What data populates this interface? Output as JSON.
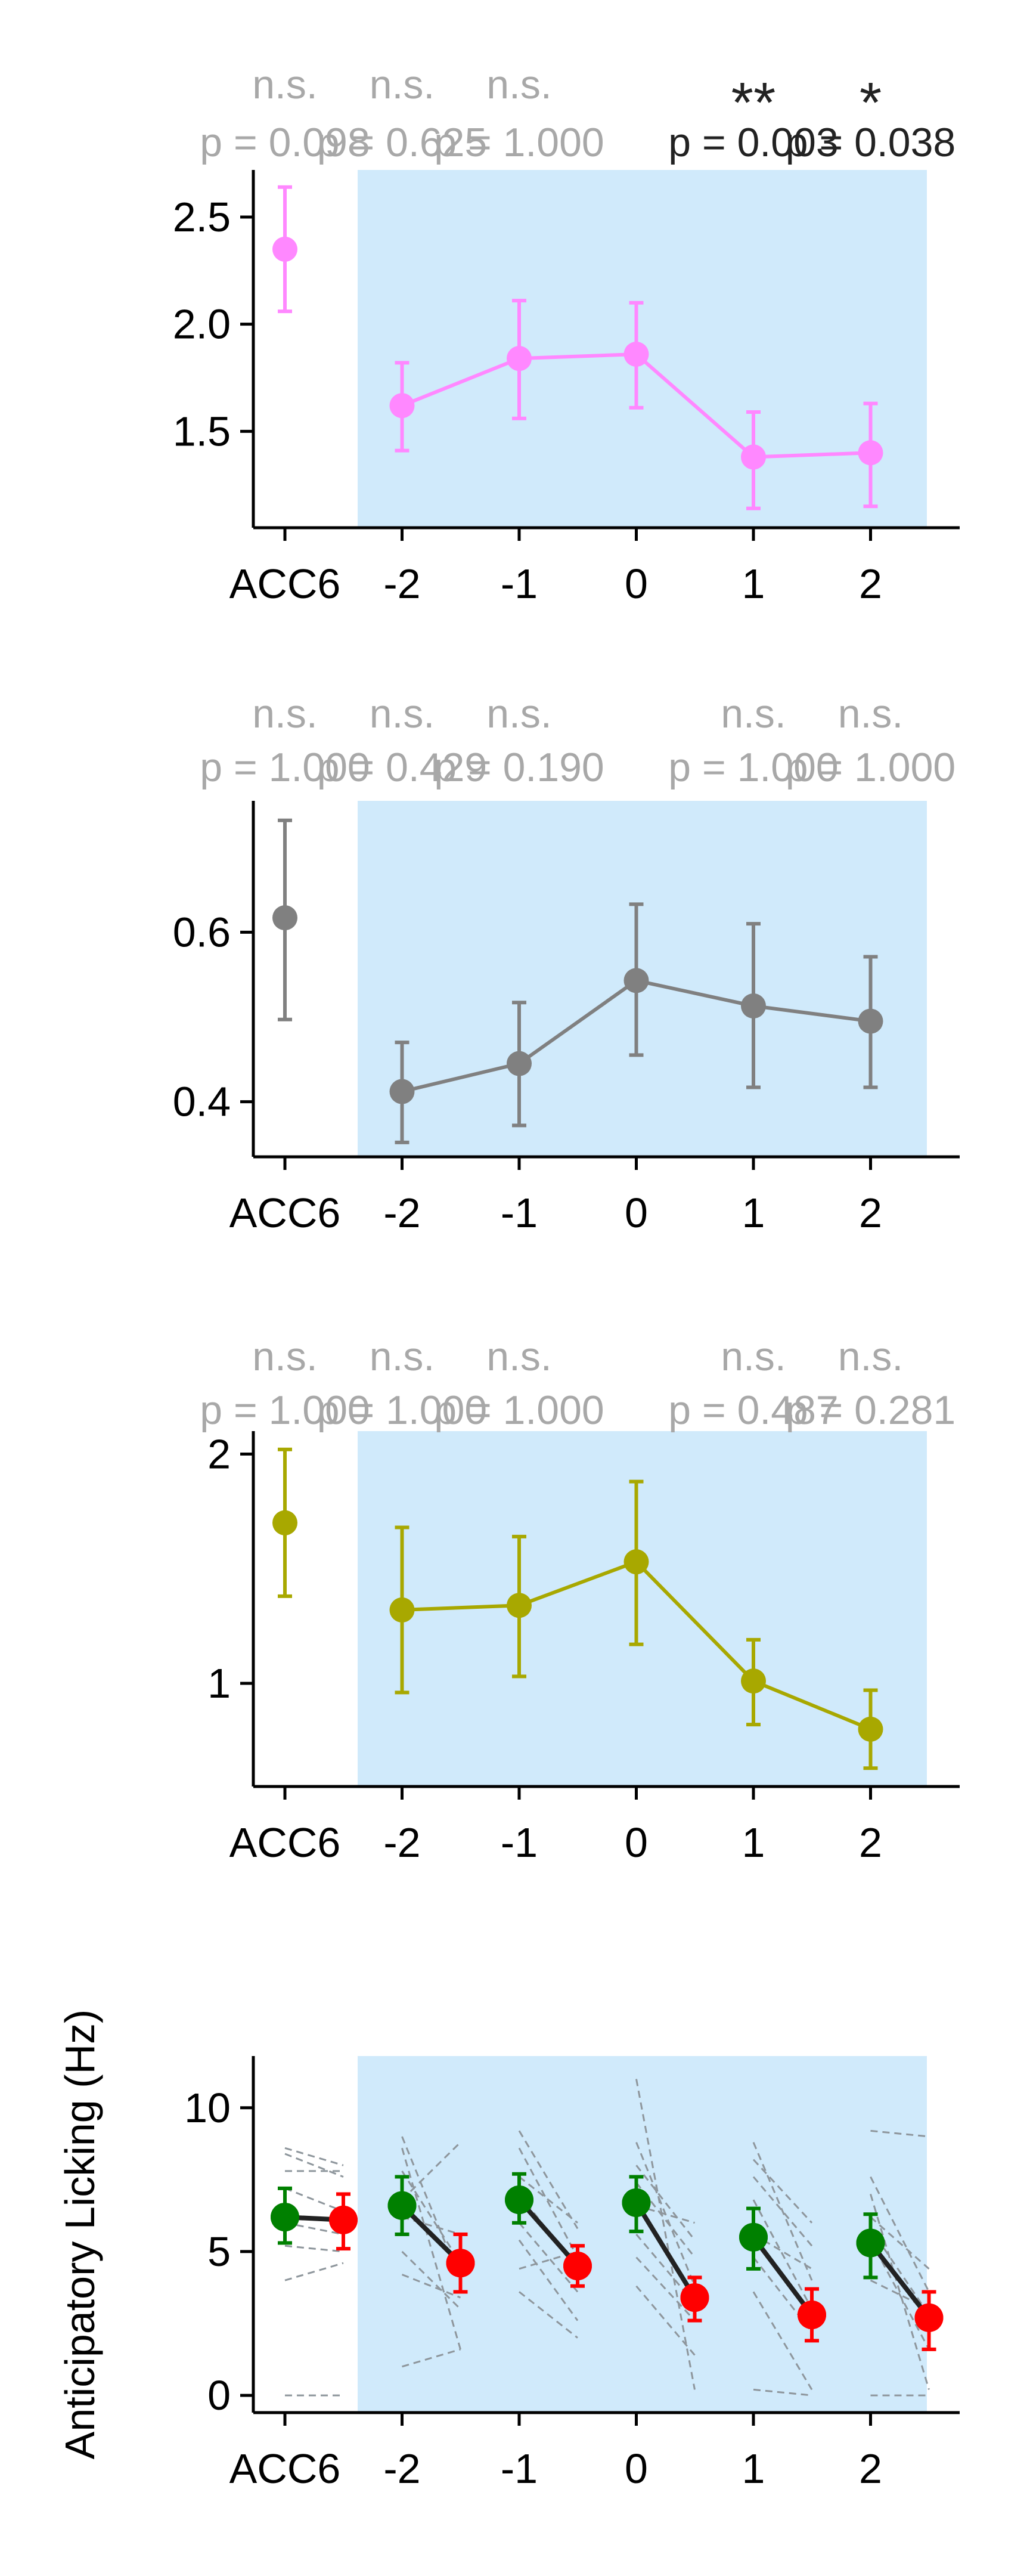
{
  "chart_data": [
    {
      "type": "line",
      "ylabel": "",
      "categories": [
        "ACC6",
        "-2",
        "-1",
        "0",
        "1",
        "2"
      ],
      "yticks": [
        1.5,
        2.0,
        2.5
      ],
      "ytick_labels": [
        "1.5",
        "2.0",
        "2.5"
      ],
      "ylim": [
        1.05,
        2.72
      ],
      "shaded_region": {
        "from": "-2",
        "to": "2",
        "color": "#d0eafb"
      },
      "series": [
        {
          "color": "#ff88ff",
          "points": [
            {
              "x": "ACC6",
              "y": 2.35,
              "err_low": 2.06,
              "err_high": 2.64
            },
            {
              "x": "-2",
              "y": 1.62,
              "err_low": 1.41,
              "err_high": 1.82
            },
            {
              "x": "-1",
              "y": 1.84,
              "err_low": 1.56,
              "err_high": 2.11
            },
            {
              "x": "0",
              "y": 1.86,
              "err_low": 1.61,
              "err_high": 2.1
            },
            {
              "x": "1",
              "y": 1.38,
              "err_low": 1.14,
              "err_high": 1.59
            },
            {
              "x": "2",
              "y": 1.4,
              "err_low": 1.15,
              "err_high": 1.63
            }
          ]
        }
      ],
      "annotations": [
        {
          "x": "ACC6",
          "mark": "n.s.",
          "p": "p = 0.098",
          "significant": false
        },
        {
          "x": "-2",
          "mark": "n.s.",
          "p": "p = 0.625",
          "significant": false
        },
        {
          "x": "-1",
          "mark": "n.s.",
          "p": "p = 1.000",
          "significant": false
        },
        {
          "x": "1",
          "mark": "**",
          "p": "p = 0.003",
          "significant": true
        },
        {
          "x": "2",
          "mark": "*",
          "p": "p = 0.038",
          "significant": true
        }
      ]
    },
    {
      "type": "line",
      "ylabel": "",
      "categories": [
        "ACC6",
        "-2",
        "-1",
        "0",
        "1",
        "2"
      ],
      "yticks": [
        0.4,
        0.6
      ],
      "ytick_labels": [
        "0.4",
        "0.6"
      ],
      "ylim": [
        0.335,
        0.755
      ],
      "shaded_region": {
        "from": "-2",
        "to": "2",
        "color": "#d0eafb"
      },
      "series": [
        {
          "color": "#808080",
          "points": [
            {
              "x": "ACC6",
              "y": 0.617,
              "err_low": 0.497,
              "err_high": 0.732
            },
            {
              "x": "-2",
              "y": 0.412,
              "err_low": 0.352,
              "err_high": 0.47
            },
            {
              "x": "-1",
              "y": 0.445,
              "err_low": 0.372,
              "err_high": 0.517
            },
            {
              "x": "0",
              "y": 0.543,
              "err_low": 0.455,
              "err_high": 0.633
            },
            {
              "x": "1",
              "y": 0.513,
              "err_low": 0.417,
              "err_high": 0.61
            },
            {
              "x": "2",
              "y": 0.495,
              "err_low": 0.417,
              "err_high": 0.571
            }
          ]
        }
      ],
      "annotations": [
        {
          "x": "ACC6",
          "mark": "n.s.",
          "p": "p = 1.000",
          "significant": false
        },
        {
          "x": "-2",
          "mark": "n.s.",
          "p": "p = 0.429",
          "significant": false
        },
        {
          "x": "-1",
          "mark": "n.s.",
          "p": "p = 0.190",
          "significant": false
        },
        {
          "x": "1",
          "mark": "n.s.",
          "p": "p = 1.000",
          "significant": false
        },
        {
          "x": "2",
          "mark": "n.s.",
          "p": "p = 1.000",
          "significant": false
        }
      ]
    },
    {
      "type": "line",
      "ylabel": "",
      "categories": [
        "ACC6",
        "-2",
        "-1",
        "0",
        "1",
        "2"
      ],
      "yticks": [
        1,
        2
      ],
      "ytick_labels": [
        "1",
        "2"
      ],
      "ylim": [
        0.55,
        2.1
      ],
      "shaded_region": {
        "from": "-2",
        "to": "2",
        "color": "#d0eafb"
      },
      "series": [
        {
          "color": "#a8a800",
          "points": [
            {
              "x": "ACC6",
              "y": 1.7,
              "err_low": 1.38,
              "err_high": 2.02
            },
            {
              "x": "-2",
              "y": 1.32,
              "err_low": 0.96,
              "err_high": 1.68
            },
            {
              "x": "-1",
              "y": 1.34,
              "err_low": 1.03,
              "err_high": 1.64
            },
            {
              "x": "0",
              "y": 1.53,
              "err_low": 1.17,
              "err_high": 1.88
            },
            {
              "x": "1",
              "y": 1.01,
              "err_low": 0.82,
              "err_high": 1.19
            },
            {
              "x": "2",
              "y": 0.8,
              "err_low": 0.63,
              "err_high": 0.97
            }
          ]
        }
      ],
      "annotations": [
        {
          "x": "ACC6",
          "mark": "n.s.",
          "p": "p = 1.000",
          "significant": false
        },
        {
          "x": "-2",
          "mark": "n.s.",
          "p": "p = 1.000",
          "significant": false
        },
        {
          "x": "-1",
          "mark": "n.s.",
          "p": "p = 1.000",
          "significant": false
        },
        {
          "x": "1",
          "mark": "n.s.",
          "p": "p = 0.487",
          "significant": false
        },
        {
          "x": "2",
          "mark": "n.s.",
          "p": "p = 0.281",
          "significant": false
        }
      ]
    },
    {
      "type": "line",
      "ylabel": "Anticipatory Licking (Hz)",
      "categories": [
        "ACC6",
        "-2",
        "-1",
        "0",
        "1",
        "2"
      ],
      "yticks": [
        0,
        5,
        10
      ],
      "ytick_labels": [
        "0",
        "5",
        "10"
      ],
      "ylim": [
        -0.6,
        11.8
      ],
      "shaded_region": {
        "from": "-2",
        "to": "2",
        "color": "#d0eafb"
      },
      "series": [
        {
          "color": "#008000",
          "points": [
            {
              "x": "ACC6",
              "y": 6.2,
              "err_low": 5.3,
              "err_high": 7.2
            },
            {
              "x": "-2",
              "y": 6.6,
              "err_low": 5.6,
              "err_high": 7.6
            },
            {
              "x": "-1",
              "y": 6.8,
              "err_low": 6.0,
              "err_high": 7.7
            },
            {
              "x": "0",
              "y": 6.7,
              "err_low": 5.7,
              "err_high": 7.6
            },
            {
              "x": "1",
              "y": 5.5,
              "err_low": 4.4,
              "err_high": 6.5
            },
            {
              "x": "2",
              "y": 5.3,
              "err_low": 4.1,
              "err_high": 6.3
            }
          ]
        },
        {
          "color": "#ff0000",
          "points": [
            {
              "x": "ACC6",
              "y": 6.1,
              "err_low": 5.1,
              "err_high": 7.0
            },
            {
              "x": "-2",
              "y": 4.6,
              "err_low": 3.6,
              "err_high": 5.6
            },
            {
              "x": "-1",
              "y": 4.5,
              "err_low": 3.8,
              "err_high": 5.2
            },
            {
              "x": "0",
              "y": 3.4,
              "err_low": 2.6,
              "err_high": 4.1
            },
            {
              "x": "1",
              "y": 2.8,
              "err_low": 1.9,
              "err_high": 3.7
            },
            {
              "x": "2",
              "y": 2.7,
              "err_low": 1.6,
              "err_high": 3.6
            }
          ]
        }
      ],
      "individual_pairs": [
        [
          [
            8.6,
            8.0
          ],
          [
            8.4,
            7.6
          ],
          [
            7.8,
            7.8
          ],
          [
            7.2,
            6.4
          ],
          [
            6.0,
            5.6
          ],
          [
            5.2,
            5.0
          ],
          [
            4.0,
            4.6
          ],
          [
            0.0,
            0.0
          ]
        ],
        [
          [
            9.0,
            4.0
          ],
          [
            8.6,
            1.6
          ],
          [
            7.8,
            4.6
          ],
          [
            6.8,
            8.8
          ],
          [
            6.2,
            5.6
          ],
          [
            5.0,
            3.0
          ],
          [
            4.2,
            3.4
          ],
          [
            1.0,
            1.6
          ]
        ],
        [
          [
            9.2,
            5.8
          ],
          [
            8.6,
            4.8
          ],
          [
            7.6,
            6.0
          ],
          [
            7.0,
            4.4
          ],
          [
            6.0,
            3.6
          ],
          [
            5.4,
            2.6
          ],
          [
            4.4,
            5.0
          ],
          [
            3.6,
            2.0
          ]
        ],
        [
          [
            11.0,
            0.2
          ],
          [
            8.8,
            3.8
          ],
          [
            8.0,
            5.4
          ],
          [
            7.4,
            4.8
          ],
          [
            6.6,
            6.0
          ],
          [
            5.6,
            3.2
          ],
          [
            4.8,
            2.6
          ],
          [
            3.8,
            1.4
          ]
        ],
        [
          [
            8.8,
            4.0
          ],
          [
            8.2,
            6.0
          ],
          [
            7.6,
            5.2
          ],
          [
            6.8,
            3.0
          ],
          [
            5.6,
            4.4
          ],
          [
            4.8,
            2.2
          ],
          [
            3.6,
            0.2
          ],
          [
            0.2,
            0.0
          ]
        ],
        [
          [
            9.2,
            9.0
          ],
          [
            7.6,
            3.6
          ],
          [
            7.0,
            0.2
          ],
          [
            6.2,
            4.4
          ],
          [
            5.8,
            2.8
          ],
          [
            5.4,
            1.6
          ],
          [
            4.0,
            3.0
          ],
          [
            0.0,
            0.0
          ]
        ]
      ],
      "annotations": []
    }
  ]
}
